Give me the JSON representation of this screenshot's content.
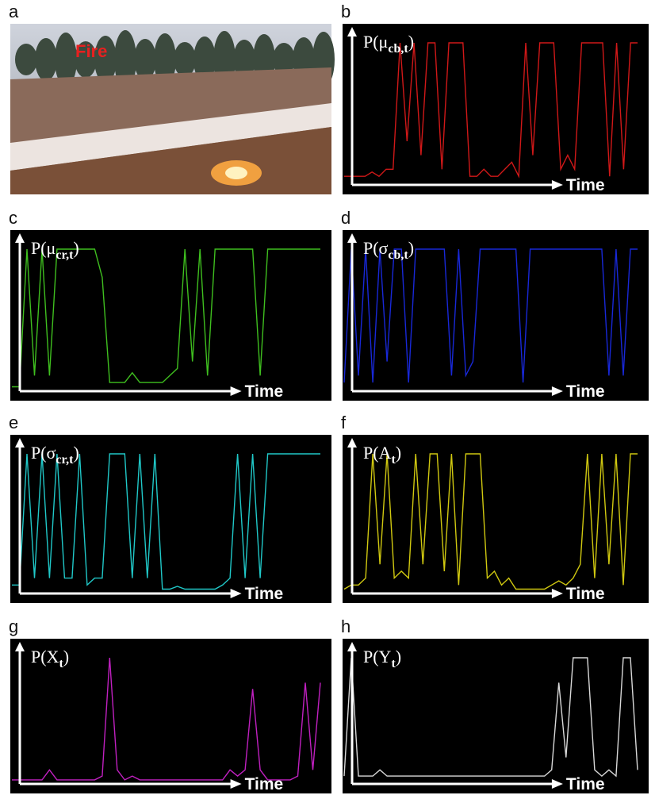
{
  "panels": [
    {
      "letter": "a",
      "type": "image",
      "annotation": "Fire"
    },
    {
      "letter": "b",
      "type": "line",
      "ylabel": {
        "main": "P(μ",
        "sub": "cb,t",
        "close": ")"
      },
      "xlabel": "Time",
      "color": "#d01818",
      "values": [
        0.05,
        0.05,
        0.05,
        0.05,
        0.08,
        0.05,
        0.1,
        0.1,
        1,
        0.3,
        1,
        0.2,
        1,
        1,
        0.1,
        1,
        1,
        1,
        0.05,
        0.05,
        0.1,
        0.05,
        0.05,
        0.1,
        0.15,
        0.05,
        1,
        0.2,
        1,
        1,
        1,
        0.1,
        0.2,
        0.1,
        1,
        1,
        1,
        1,
        0.05,
        1,
        0.1,
        1,
        1
      ]
    },
    {
      "letter": "c",
      "type": "line",
      "ylabel": {
        "main": "P(μ",
        "sub": "cr,t",
        "close": ")"
      },
      "xlabel": "Time",
      "color": "#3fbf1f",
      "values": [
        0.02,
        0.02,
        1,
        0.1,
        1,
        0.1,
        1,
        1,
        1,
        1,
        1,
        1,
        0.8,
        0.05,
        0.05,
        0.05,
        0.12,
        0.05,
        0.05,
        0.05,
        0.05,
        0.1,
        0.15,
        1,
        0.2,
        1,
        0.1,
        1,
        1,
        1,
        1,
        1,
        1,
        0.1,
        1,
        1,
        1,
        1,
        1,
        1,
        1,
        1
      ]
    },
    {
      "letter": "d",
      "type": "line",
      "ylabel": {
        "main": "P(σ",
        "sub": "cb,t",
        "close": ")"
      },
      "xlabel": "Time",
      "color": "#1828d8",
      "values": [
        0.05,
        1,
        0.1,
        1,
        0.05,
        1,
        0.2,
        1,
        1,
        0.05,
        1,
        1,
        1,
        1,
        1,
        0.1,
        1,
        0.1,
        0.2,
        1,
        1,
        1,
        1,
        1,
        1,
        0.05,
        1,
        1,
        1,
        1,
        1,
        1,
        1,
        1,
        1,
        1,
        1,
        0.1,
        1,
        0.1,
        1,
        1
      ]
    },
    {
      "letter": "e",
      "type": "line",
      "ylabel": {
        "main": "P(σ",
        "sub": "cr,t",
        "close": ")"
      },
      "xlabel": "Time",
      "color": "#20c8c8",
      "values": [
        0.05,
        0.05,
        1,
        0.1,
        1,
        0.1,
        1,
        0.1,
        0.1,
        1,
        0.05,
        0.1,
        0.1,
        1,
        1,
        1,
        0.1,
        1,
        0.1,
        1,
        0.02,
        0.02,
        0.04,
        0.02,
        0.02,
        0.02,
        0.02,
        0.02,
        0.05,
        0.1,
        1,
        0.1,
        1,
        0.1,
        1,
        1,
        1,
        1,
        1,
        1,
        1,
        1
      ]
    },
    {
      "letter": "f",
      "type": "line",
      "ylabel": {
        "main": "P(A",
        "sub": "t",
        "close": ")"
      },
      "xlabel": "Time",
      "color": "#d0c810",
      "values": [
        0.02,
        0.05,
        0.05,
        0.1,
        1,
        0.2,
        1,
        0.1,
        0.15,
        0.1,
        1,
        0.2,
        1,
        1,
        0.15,
        1,
        0.05,
        1,
        1,
        1,
        0.1,
        0.15,
        0.05,
        0.1,
        0.02,
        0.02,
        0.02,
        0.02,
        0.02,
        0.05,
        0.08,
        0.05,
        0.1,
        0.2,
        1,
        0.1,
        1,
        0.2,
        1,
        0.05,
        1,
        1
      ]
    },
    {
      "letter": "g",
      "type": "line",
      "ylabel": {
        "main": "P(X",
        "sub": "t",
        "close": ")"
      },
      "xlabel": "Time",
      "color": "#c020c0",
      "values": [
        0.02,
        0.02,
        0.02,
        0.02,
        0.02,
        0.1,
        0.02,
        0.02,
        0.02,
        0.02,
        0.02,
        0.02,
        0.05,
        1,
        0.1,
        0.02,
        0.05,
        0.02,
        0.02,
        0.02,
        0.02,
        0.02,
        0.02,
        0.02,
        0.02,
        0.02,
        0.02,
        0.02,
        0.02,
        0.1,
        0.05,
        0.1,
        0.75,
        0.1,
        0.02,
        0.02,
        0.02,
        0.02,
        0.05,
        0.8,
        0.1,
        0.8
      ]
    },
    {
      "letter": "h",
      "type": "line",
      "ylabel": {
        "main": "P(Y",
        "sub": "t",
        "close": ")"
      },
      "xlabel": "Time",
      "color": "#d8d8d8",
      "values": [
        0.05,
        1,
        0.05,
        0.05,
        0.05,
        0.1,
        0.05,
        0.05,
        0.05,
        0.05,
        0.05,
        0.05,
        0.05,
        0.05,
        0.05,
        0.05,
        0.05,
        0.05,
        0.05,
        0.05,
        0.05,
        0.05,
        0.05,
        0.05,
        0.05,
        0.05,
        0.05,
        0.05,
        0.05,
        0.1,
        0.8,
        0.2,
        1,
        1,
        1,
        0.1,
        0.05,
        0.1,
        0.05,
        1,
        1,
        0.1
      ]
    }
  ]
}
